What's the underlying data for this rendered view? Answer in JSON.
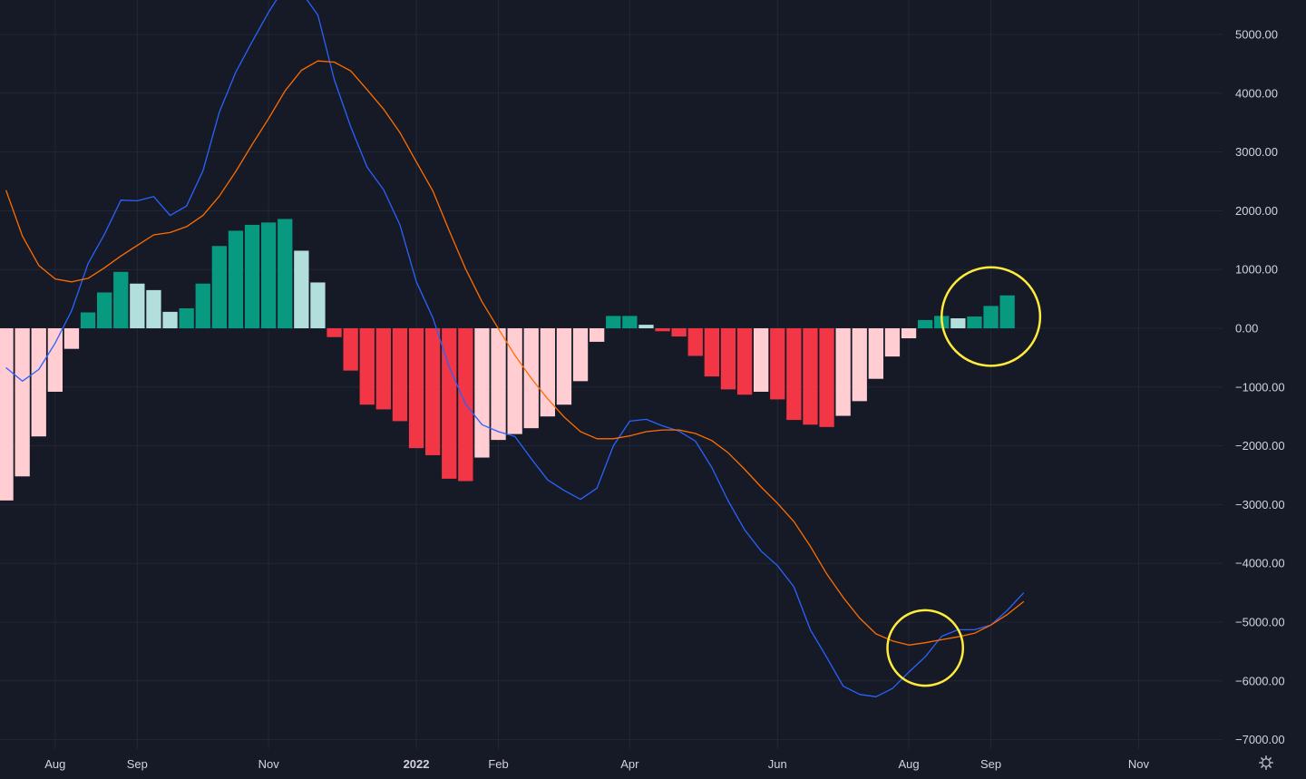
{
  "chart_data": {
    "type": "bar",
    "title": "",
    "xlabel": "",
    "ylabel": "",
    "grid": true,
    "ylim": [
      -7300,
      5600
    ],
    "y_ticks": [
      5000,
      4000,
      3000,
      2000,
      1000,
      0,
      -1000,
      -2000,
      -3000,
      -4000,
      -5000,
      -6000,
      -7000
    ],
    "y_tick_labels": [
      "5000.00",
      "4000.00",
      "3000.00",
      "2000.00",
      "1000.00",
      "0.00",
      "−1000.00",
      "−2000.00",
      "−3000.00",
      "−4000.00",
      "−5000.00",
      "−6000.00",
      "−7000.00"
    ],
    "x_ticks": [
      {
        "label": "Aug",
        "index": 3,
        "bold": false
      },
      {
        "label": "Sep",
        "index": 8,
        "bold": false
      },
      {
        "label": "Nov",
        "index": 16,
        "bold": false
      },
      {
        "label": "2022",
        "index": 25,
        "bold": true
      },
      {
        "label": "Feb",
        "index": 30,
        "bold": false
      },
      {
        "label": "Apr",
        "index": 38,
        "bold": false
      },
      {
        "label": "Jun",
        "index": 47,
        "bold": false
      },
      {
        "label": "Aug",
        "index": 55,
        "bold": false
      },
      {
        "label": "Sep",
        "index": 60,
        "bold": false
      },
      {
        "label": "Nov",
        "index": 69,
        "bold": false
      }
    ],
    "x_range": [
      -0.5,
      74.5
    ],
    "histogram": {
      "name": "",
      "values": [
        -2930,
        -2520,
        -1840,
        -1080,
        -350,
        270,
        610,
        960,
        760,
        650,
        280,
        340,
        760,
        1400,
        1660,
        1760,
        1800,
        1860,
        1320,
        780,
        -150,
        -720,
        -1300,
        -1380,
        -1580,
        -2040,
        -2160,
        -2560,
        -2600,
        -2200,
        -1900,
        -1800,
        -1700,
        -1500,
        -1300,
        -900,
        -230,
        210,
        210,
        60,
        -50,
        -140,
        -470,
        -820,
        -1040,
        -1130,
        -1080,
        -1210,
        -1560,
        -1640,
        -1680,
        -1490,
        -1240,
        -860,
        -480,
        -170,
        140,
        210,
        170,
        200,
        380,
        560
      ],
      "colors": [
        "#ffcdd2",
        "#ffcdd2",
        "#ffcdd2",
        "#ffcdd2",
        "#ffcdd2",
        "#089981",
        "#089981",
        "#089981",
        "#b2dfdb",
        "#b2dfdb",
        "#b2dfdb",
        "#089981",
        "#089981",
        "#089981",
        "#089981",
        "#089981",
        "#089981",
        "#089981",
        "#b2dfdb",
        "#b2dfdb",
        "#f23645",
        "#f23645",
        "#f23645",
        "#f23645",
        "#f23645",
        "#f23645",
        "#f23645",
        "#f23645",
        "#f23645",
        "#ffcdd2",
        "#ffcdd2",
        "#ffcdd2",
        "#ffcdd2",
        "#ffcdd2",
        "#ffcdd2",
        "#ffcdd2",
        "#ffcdd2",
        "#089981",
        "#089981",
        "#b2dfdb",
        "#f23645",
        "#f23645",
        "#f23645",
        "#f23645",
        "#f23645",
        "#f23645",
        "#ffcdd2",
        "#f23645",
        "#f23645",
        "#f23645",
        "#f23645",
        "#ffcdd2",
        "#ffcdd2",
        "#ffcdd2",
        "#ffcdd2",
        "#ffcdd2",
        "#089981",
        "#089981",
        "#b2dfdb",
        "#089981",
        "#089981",
        "#089981"
      ]
    },
    "series": [
      {
        "name": "",
        "color": "#2962ff",
        "values": [
          -670,
          -900,
          -700,
          -250,
          300,
          1100,
          1600,
          2180,
          2170,
          2240,
          1920,
          2080,
          2680,
          3680,
          4360,
          4880,
          5380,
          5820,
          5720,
          5330,
          4230,
          3430,
          2740,
          2360,
          1760,
          790,
          180,
          -660,
          -1290,
          -1640,
          -1760,
          -1840,
          -2220,
          -2580,
          -2760,
          -2910,
          -2720,
          -2000,
          -1580,
          -1550,
          -1660,
          -1750,
          -1920,
          -2370,
          -2940,
          -3430,
          -3790,
          -4040,
          -4400,
          -5130,
          -5600,
          -6090,
          -6230,
          -6270,
          -6130,
          -5850,
          -5590,
          -5240,
          -5130,
          -5130,
          -5050,
          -4800,
          -4500
        ],
        "x_start": 0
      },
      {
        "name": "",
        "color": "#ff6d00",
        "values": [
          2350,
          1570,
          1070,
          840,
          790,
          850,
          1030,
          1230,
          1410,
          1590,
          1630,
          1730,
          1920,
          2250,
          2670,
          3130,
          3570,
          4040,
          4390,
          4550,
          4530,
          4380,
          4060,
          3730,
          3330,
          2830,
          2340,
          1660,
          1010,
          450,
          -10,
          -460,
          -850,
          -1200,
          -1510,
          -1760,
          -1880,
          -1880,
          -1830,
          -1760,
          -1730,
          -1730,
          -1790,
          -1910,
          -2120,
          -2400,
          -2700,
          -2980,
          -3290,
          -3710,
          -4180,
          -4580,
          -4930,
          -5200,
          -5320,
          -5390,
          -5350,
          -5300,
          -5250,
          -5190,
          -5050,
          -4870,
          -4650
        ],
        "x_start": 0
      }
    ],
    "annotations": [
      {
        "type": "circle",
        "shape": "circle",
        "color": "#ffeb3b",
        "center_index": 60,
        "center_value": 200,
        "radius_index": 3.0
      },
      {
        "type": "circle",
        "shape": "circle",
        "color": "#ffeb3b",
        "center_index": 56,
        "center_value": -5440,
        "radius_index": 2.3
      }
    ],
    "settings_icon": "gear-icon"
  }
}
